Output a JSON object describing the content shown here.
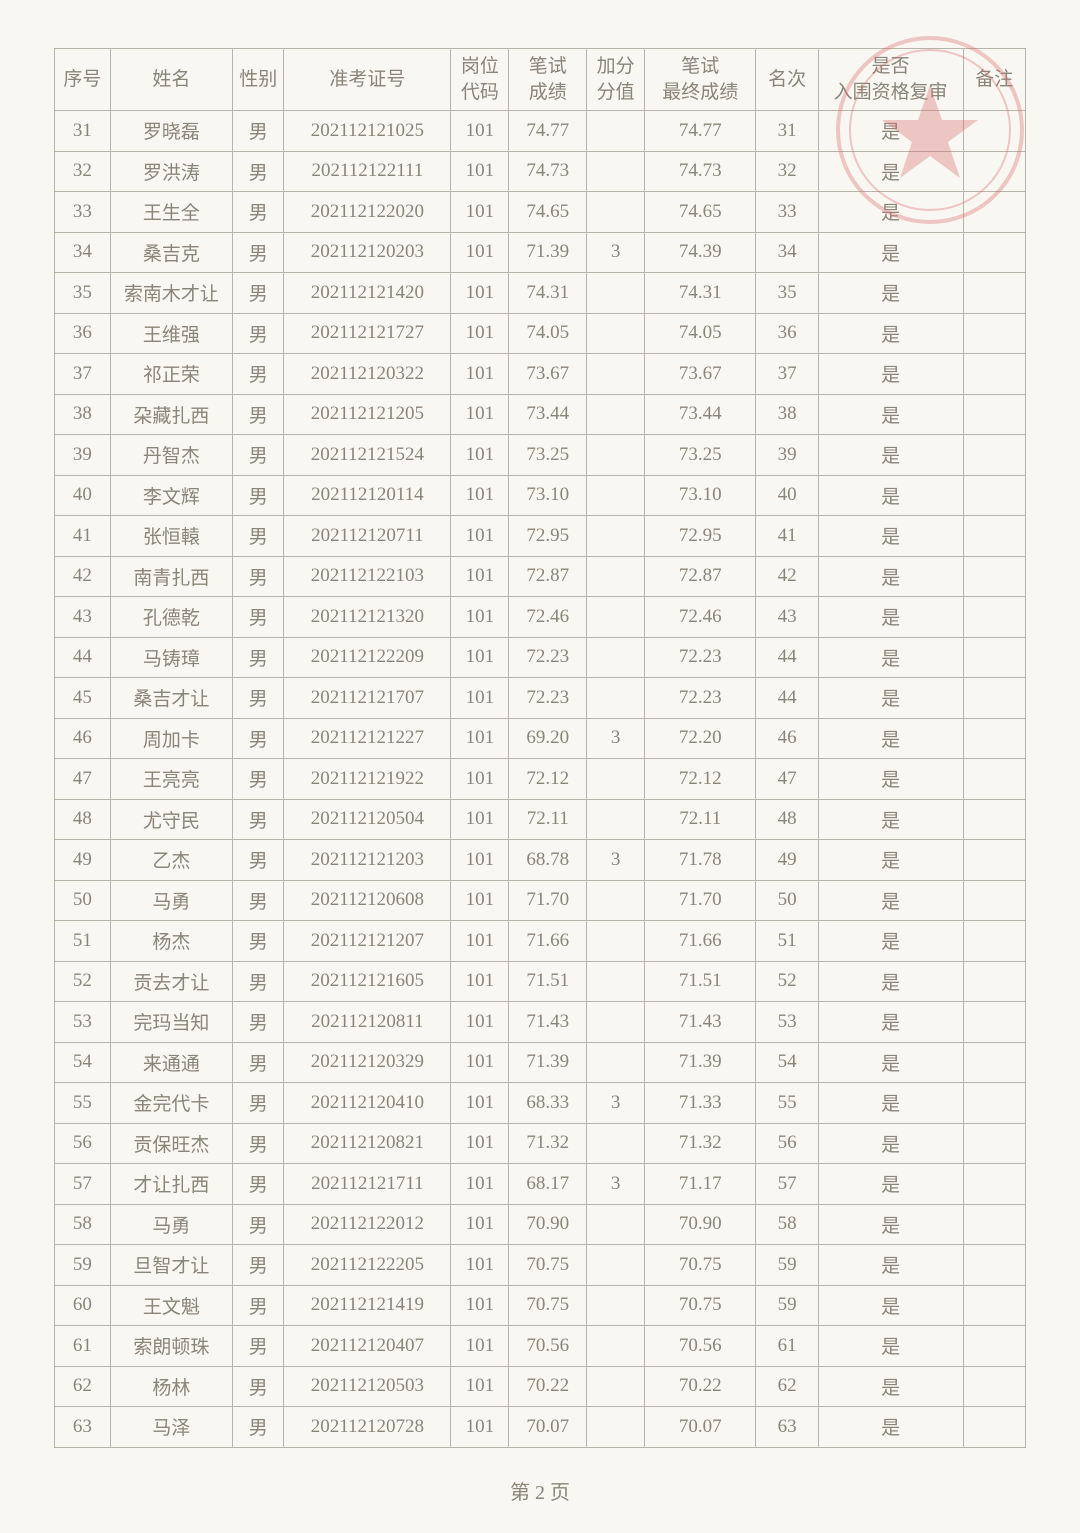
{
  "table": {
    "columns": [
      {
        "key": "seq",
        "label": "序号",
        "cls": "c-seq"
      },
      {
        "key": "name",
        "label": "姓名",
        "cls": "c-name"
      },
      {
        "key": "sex",
        "label": "性别",
        "cls": "c-sex"
      },
      {
        "key": "id",
        "label": "准考证号",
        "cls": "c-id"
      },
      {
        "key": "post",
        "label": "岗位\n代码",
        "cls": "c-post"
      },
      {
        "key": "score",
        "label": "笔试\n成绩",
        "cls": "c-score"
      },
      {
        "key": "bonus",
        "label": "加分\n分值",
        "cls": "c-bonus"
      },
      {
        "key": "final",
        "label": "笔试\n最终成绩",
        "cls": "c-final"
      },
      {
        "key": "rank",
        "label": "名次",
        "cls": "c-rank"
      },
      {
        "key": "qual",
        "label": "是否\n入围资格复审",
        "cls": "c-qual"
      },
      {
        "key": "note",
        "label": "备注",
        "cls": "c-note"
      }
    ],
    "rows": [
      {
        "seq": "31",
        "name": "罗晓磊",
        "sex": "男",
        "id": "202112121025",
        "post": "101",
        "score": "74.77",
        "bonus": "",
        "final": "74.77",
        "rank": "31",
        "qual": "是",
        "note": ""
      },
      {
        "seq": "32",
        "name": "罗洪涛",
        "sex": "男",
        "id": "202112122111",
        "post": "101",
        "score": "74.73",
        "bonus": "",
        "final": "74.73",
        "rank": "32",
        "qual": "是",
        "note": ""
      },
      {
        "seq": "33",
        "name": "王生全",
        "sex": "男",
        "id": "202112122020",
        "post": "101",
        "score": "74.65",
        "bonus": "",
        "final": "74.65",
        "rank": "33",
        "qual": "是",
        "note": ""
      },
      {
        "seq": "34",
        "name": "桑吉克",
        "sex": "男",
        "id": "202112120203",
        "post": "101",
        "score": "71.39",
        "bonus": "3",
        "final": "74.39",
        "rank": "34",
        "qual": "是",
        "note": ""
      },
      {
        "seq": "35",
        "name": "索南木才让",
        "sex": "男",
        "id": "202112121420",
        "post": "101",
        "score": "74.31",
        "bonus": "",
        "final": "74.31",
        "rank": "35",
        "qual": "是",
        "note": ""
      },
      {
        "seq": "36",
        "name": "王维强",
        "sex": "男",
        "id": "202112121727",
        "post": "101",
        "score": "74.05",
        "bonus": "",
        "final": "74.05",
        "rank": "36",
        "qual": "是",
        "note": ""
      },
      {
        "seq": "37",
        "name": "祁正荣",
        "sex": "男",
        "id": "202112120322",
        "post": "101",
        "score": "73.67",
        "bonus": "",
        "final": "73.67",
        "rank": "37",
        "qual": "是",
        "note": ""
      },
      {
        "seq": "38",
        "name": "朶藏扎西",
        "sex": "男",
        "id": "202112121205",
        "post": "101",
        "score": "73.44",
        "bonus": "",
        "final": "73.44",
        "rank": "38",
        "qual": "是",
        "note": ""
      },
      {
        "seq": "39",
        "name": "丹智杰",
        "sex": "男",
        "id": "202112121524",
        "post": "101",
        "score": "73.25",
        "bonus": "",
        "final": "73.25",
        "rank": "39",
        "qual": "是",
        "note": ""
      },
      {
        "seq": "40",
        "name": "李文辉",
        "sex": "男",
        "id": "202112120114",
        "post": "101",
        "score": "73.10",
        "bonus": "",
        "final": "73.10",
        "rank": "40",
        "qual": "是",
        "note": ""
      },
      {
        "seq": "41",
        "name": "张恒轅",
        "sex": "男",
        "id": "202112120711",
        "post": "101",
        "score": "72.95",
        "bonus": "",
        "final": "72.95",
        "rank": "41",
        "qual": "是",
        "note": ""
      },
      {
        "seq": "42",
        "name": "南青扎西",
        "sex": "男",
        "id": "202112122103",
        "post": "101",
        "score": "72.87",
        "bonus": "",
        "final": "72.87",
        "rank": "42",
        "qual": "是",
        "note": ""
      },
      {
        "seq": "43",
        "name": "孔德乾",
        "sex": "男",
        "id": "202112121320",
        "post": "101",
        "score": "72.46",
        "bonus": "",
        "final": "72.46",
        "rank": "43",
        "qual": "是",
        "note": ""
      },
      {
        "seq": "44",
        "name": "马铸璋",
        "sex": "男",
        "id": "202112122209",
        "post": "101",
        "score": "72.23",
        "bonus": "",
        "final": "72.23",
        "rank": "44",
        "qual": "是",
        "note": ""
      },
      {
        "seq": "45",
        "name": "桑吉才让",
        "sex": "男",
        "id": "202112121707",
        "post": "101",
        "score": "72.23",
        "bonus": "",
        "final": "72.23",
        "rank": "44",
        "qual": "是",
        "note": ""
      },
      {
        "seq": "46",
        "name": "周加卡",
        "sex": "男",
        "id": "202112121227",
        "post": "101",
        "score": "69.20",
        "bonus": "3",
        "final": "72.20",
        "rank": "46",
        "qual": "是",
        "note": ""
      },
      {
        "seq": "47",
        "name": "王亮亮",
        "sex": "男",
        "id": "202112121922",
        "post": "101",
        "score": "72.12",
        "bonus": "",
        "final": "72.12",
        "rank": "47",
        "qual": "是",
        "note": ""
      },
      {
        "seq": "48",
        "name": "尤守民",
        "sex": "男",
        "id": "202112120504",
        "post": "101",
        "score": "72.11",
        "bonus": "",
        "final": "72.11",
        "rank": "48",
        "qual": "是",
        "note": ""
      },
      {
        "seq": "49",
        "name": "乙杰",
        "sex": "男",
        "id": "202112121203",
        "post": "101",
        "score": "68.78",
        "bonus": "3",
        "final": "71.78",
        "rank": "49",
        "qual": "是",
        "note": ""
      },
      {
        "seq": "50",
        "name": "马勇",
        "sex": "男",
        "id": "202112120608",
        "post": "101",
        "score": "71.70",
        "bonus": "",
        "final": "71.70",
        "rank": "50",
        "qual": "是",
        "note": ""
      },
      {
        "seq": "51",
        "name": "杨杰",
        "sex": "男",
        "id": "202112121207",
        "post": "101",
        "score": "71.66",
        "bonus": "",
        "final": "71.66",
        "rank": "51",
        "qual": "是",
        "note": ""
      },
      {
        "seq": "52",
        "name": "贡去才让",
        "sex": "男",
        "id": "202112121605",
        "post": "101",
        "score": "71.51",
        "bonus": "",
        "final": "71.51",
        "rank": "52",
        "qual": "是",
        "note": ""
      },
      {
        "seq": "53",
        "name": "完玛当知",
        "sex": "男",
        "id": "202112120811",
        "post": "101",
        "score": "71.43",
        "bonus": "",
        "final": "71.43",
        "rank": "53",
        "qual": "是",
        "note": ""
      },
      {
        "seq": "54",
        "name": "来通通",
        "sex": "男",
        "id": "202112120329",
        "post": "101",
        "score": "71.39",
        "bonus": "",
        "final": "71.39",
        "rank": "54",
        "qual": "是",
        "note": ""
      },
      {
        "seq": "55",
        "name": "金完代卡",
        "sex": "男",
        "id": "202112120410",
        "post": "101",
        "score": "68.33",
        "bonus": "3",
        "final": "71.33",
        "rank": "55",
        "qual": "是",
        "note": ""
      },
      {
        "seq": "56",
        "name": "贡保旺杰",
        "sex": "男",
        "id": "202112120821",
        "post": "101",
        "score": "71.32",
        "bonus": "",
        "final": "71.32",
        "rank": "56",
        "qual": "是",
        "note": ""
      },
      {
        "seq": "57",
        "name": "才让扎西",
        "sex": "男",
        "id": "202112121711",
        "post": "101",
        "score": "68.17",
        "bonus": "3",
        "final": "71.17",
        "rank": "57",
        "qual": "是",
        "note": ""
      },
      {
        "seq": "58",
        "name": "马勇",
        "sex": "男",
        "id": "202112122012",
        "post": "101",
        "score": "70.90",
        "bonus": "",
        "final": "70.90",
        "rank": "58",
        "qual": "是",
        "note": ""
      },
      {
        "seq": "59",
        "name": "旦智才让",
        "sex": "男",
        "id": "202112122205",
        "post": "101",
        "score": "70.75",
        "bonus": "",
        "final": "70.75",
        "rank": "59",
        "qual": "是",
        "note": ""
      },
      {
        "seq": "60",
        "name": "王文魁",
        "sex": "男",
        "id": "202112121419",
        "post": "101",
        "score": "70.75",
        "bonus": "",
        "final": "70.75",
        "rank": "59",
        "qual": "是",
        "note": ""
      },
      {
        "seq": "61",
        "name": "索朗顿珠",
        "sex": "男",
        "id": "202112120407",
        "post": "101",
        "score": "70.56",
        "bonus": "",
        "final": "70.56",
        "rank": "61",
        "qual": "是",
        "note": ""
      },
      {
        "seq": "62",
        "name": "杨林",
        "sex": "男",
        "id": "202112120503",
        "post": "101",
        "score": "70.22",
        "bonus": "",
        "final": "70.22",
        "rank": "62",
        "qual": "是",
        "note": ""
      },
      {
        "seq": "63",
        "name": "马泽",
        "sex": "男",
        "id": "202112120728",
        "post": "101",
        "score": "70.07",
        "bonus": "",
        "final": "70.07",
        "rank": "63",
        "qual": "是",
        "note": ""
      }
    ]
  },
  "footer": "第 2 页",
  "style": {
    "page_bg": "#f9f7f2",
    "border_color": "#b8b4aa",
    "text_color": "#8a8579",
    "header_fontsize": 19,
    "cell_fontsize": 19,
    "stamp_color": "#d96a6a"
  }
}
